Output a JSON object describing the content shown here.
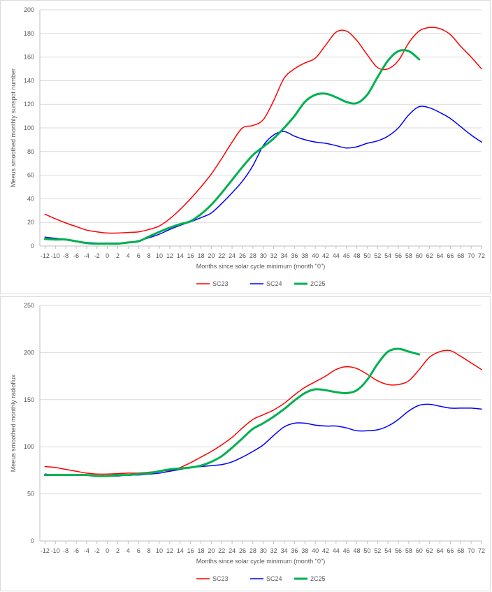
{
  "chart_data": [
    {
      "type": "line",
      "title": "",
      "xlabel": "Months since solar cycle minimum (month \"0\")",
      "ylabel": "Meeus smoothed monthly sunspot number",
      "xlim": [
        -13,
        72
      ],
      "ylim": [
        0,
        200
      ],
      "y_ticks": [
        0,
        20,
        40,
        60,
        80,
        100,
        120,
        140,
        160,
        180,
        200
      ],
      "x_ticks": [
        -12,
        -10,
        -8,
        -6,
        -4,
        -2,
        0,
        2,
        4,
        6,
        8,
        10,
        12,
        14,
        16,
        18,
        20,
        22,
        24,
        26,
        28,
        30,
        32,
        34,
        36,
        38,
        40,
        42,
        44,
        46,
        48,
        50,
        52,
        54,
        56,
        58,
        60,
        62,
        64,
        66,
        68,
        70,
        72
      ],
      "grid": true,
      "legend_position": "bottom",
      "series": [
        {
          "name": "SC23",
          "color": "#ff0000",
          "width": 1.5,
          "x": [
            -12,
            -10,
            -8,
            -6,
            -4,
            -2,
            0,
            2,
            4,
            6,
            8,
            10,
            12,
            14,
            16,
            18,
            20,
            22,
            24,
            26,
            28,
            30,
            32,
            34,
            36,
            38,
            40,
            42,
            44,
            46,
            48,
            50,
            52,
            54,
            56,
            58,
            60,
            62,
            64,
            66,
            68,
            70,
            72
          ],
          "y": [
            27,
            23,
            19.5,
            16.5,
            13.5,
            12,
            11,
            11,
            11.5,
            12,
            14,
            17,
            23,
            31,
            40,
            50,
            61,
            74,
            88,
            100,
            102,
            107,
            123,
            142,
            150,
            155,
            159,
            170,
            181,
            182,
            174,
            162,
            151,
            150,
            157,
            172,
            182,
            185,
            184,
            179,
            169,
            160,
            150
          ]
        },
        {
          "name": "SC24",
          "color": "#0000ff",
          "width": 1.5,
          "x": [
            -12,
            -10,
            -8,
            -6,
            -4,
            -2,
            0,
            2,
            4,
            6,
            8,
            10,
            12,
            14,
            16,
            18,
            20,
            22,
            24,
            26,
            28,
            30,
            32,
            34,
            36,
            38,
            40,
            42,
            44,
            46,
            48,
            50,
            52,
            54,
            56,
            58,
            60,
            62,
            64,
            66,
            68,
            70,
            72
          ],
          "y": [
            7.5,
            6.5,
            5.5,
            4,
            3,
            2.5,
            2.5,
            2.5,
            3,
            4.5,
            7,
            10,
            14,
            17.5,
            20.5,
            24,
            28,
            36,
            45,
            55,
            68,
            85,
            94,
            97,
            93,
            90,
            88,
            87,
            85,
            83,
            84,
            87,
            89,
            93,
            100,
            111,
            118,
            117,
            113,
            108,
            101,
            94,
            88
          ]
        },
        {
          "name": "2C25",
          "color": "#00b050",
          "width": 3,
          "x": [
            -12,
            -10,
            -8,
            -6,
            -4,
            -2,
            0,
            2,
            4,
            6,
            8,
            10,
            12,
            14,
            16,
            18,
            20,
            22,
            24,
            26,
            28,
            30,
            32,
            34,
            36,
            38,
            40,
            42,
            44,
            46,
            48,
            50,
            52,
            54,
            56,
            58,
            60
          ],
          "y": [
            6,
            5.5,
            5.5,
            4,
            2.5,
            2,
            2,
            2,
            3,
            4,
            8,
            12,
            15.5,
            18.5,
            21,
            27,
            35,
            45,
            56,
            67,
            77,
            84,
            91,
            100,
            110,
            122,
            128,
            129,
            126,
            122,
            121,
            128,
            143,
            157,
            165,
            165,
            158
          ]
        }
      ]
    },
    {
      "type": "line",
      "title": "",
      "xlabel": "Months since solar cycle minimum (month \"0\")",
      "ylabel": "Meeus smoothed monthly radioflux",
      "xlim": [
        -13,
        72
      ],
      "ylim": [
        0,
        250
      ],
      "y_ticks": [
        0,
        50,
        100,
        150,
        200,
        250
      ],
      "x_ticks": [
        -12,
        -10,
        -8,
        -6,
        -4,
        -2,
        0,
        2,
        4,
        6,
        8,
        10,
        12,
        14,
        16,
        18,
        20,
        22,
        24,
        26,
        28,
        30,
        32,
        34,
        36,
        38,
        40,
        42,
        44,
        46,
        48,
        50,
        52,
        54,
        56,
        58,
        60,
        62,
        64,
        66,
        68,
        70,
        72
      ],
      "grid": true,
      "legend_position": "bottom",
      "series": [
        {
          "name": "SC23",
          "color": "#ff0000",
          "width": 1.5,
          "x": [
            -12,
            -10,
            -8,
            -6,
            -4,
            -2,
            0,
            2,
            4,
            6,
            8,
            10,
            12,
            14,
            16,
            18,
            20,
            22,
            24,
            26,
            28,
            30,
            32,
            34,
            36,
            38,
            40,
            42,
            44,
            46,
            48,
            50,
            52,
            54,
            56,
            58,
            60,
            62,
            64,
            66,
            68,
            70,
            72
          ],
          "y": [
            79,
            78,
            76,
            74,
            72,
            71,
            71,
            71.5,
            72,
            72,
            73,
            74,
            75,
            78,
            83,
            89,
            95,
            102,
            110,
            120,
            129,
            134,
            139,
            146,
            155,
            163,
            169,
            175,
            182,
            185,
            183,
            177,
            170,
            166,
            166,
            170,
            182,
            195,
            201,
            202,
            196,
            189,
            182
          ]
        },
        {
          "name": "SC24",
          "color": "#0000ff",
          "width": 1.5,
          "x": [
            -12,
            -10,
            -8,
            -6,
            -4,
            -2,
            0,
            2,
            4,
            6,
            8,
            10,
            12,
            14,
            16,
            18,
            20,
            22,
            24,
            26,
            28,
            30,
            32,
            34,
            36,
            38,
            40,
            42,
            44,
            46,
            48,
            50,
            52,
            54,
            56,
            58,
            60,
            62,
            64,
            66,
            68,
            70,
            72
          ],
          "y": [
            71,
            70,
            70,
            70,
            70,
            69,
            69,
            69,
            70,
            70,
            71,
            72,
            74,
            76,
            78,
            79,
            80,
            81,
            84,
            89,
            95,
            102,
            112,
            121,
            125,
            125,
            123,
            122,
            122,
            120,
            117,
            117,
            118,
            122,
            129,
            138,
            144,
            145,
            143,
            141,
            141,
            141,
            140
          ]
        },
        {
          "name": "2C25",
          "color": "#00b050",
          "width": 3,
          "x": [
            -12,
            -10,
            -8,
            -6,
            -4,
            -2,
            0,
            2,
            4,
            6,
            8,
            10,
            12,
            14,
            16,
            18,
            20,
            22,
            24,
            26,
            28,
            30,
            32,
            34,
            36,
            38,
            40,
            42,
            44,
            46,
            48,
            50,
            52,
            54,
            56,
            58,
            60
          ],
          "y": [
            70,
            70,
            70,
            70,
            70,
            69,
            69,
            70,
            70,
            71,
            72,
            74,
            76,
            77,
            78,
            80,
            84,
            90,
            99,
            109,
            119,
            125,
            132,
            140,
            149,
            157,
            161,
            160,
            158,
            157,
            160,
            171,
            188,
            201,
            204,
            201,
            198
          ]
        }
      ]
    }
  ]
}
